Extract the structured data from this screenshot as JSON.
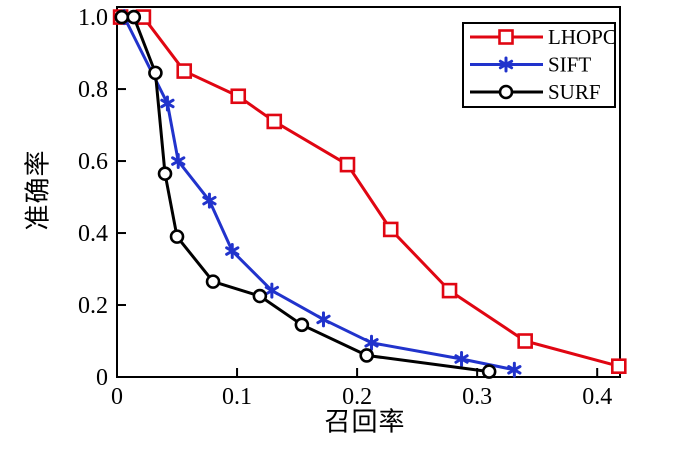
{
  "figure": {
    "background": "#ffffff",
    "frame_color": "#000000"
  },
  "chart_data": {
    "type": "line",
    "title": "",
    "xlabel": "召回率",
    "ylabel": "准确率",
    "xlim": [
      0,
      0.419
    ],
    "ylim": [
      0,
      1.028
    ],
    "grid": false,
    "xticks": {
      "values": [
        0,
        0.1,
        0.2,
        0.3,
        0.4
      ],
      "labels": [
        "0",
        "0.1",
        "0.2",
        "0.3",
        "0.4"
      ]
    },
    "yticks": {
      "values": [
        0,
        0.2,
        0.4,
        0.6,
        0.8,
        1.0
      ],
      "labels": [
        "0",
        "0.2",
        "0.4",
        "0.6",
        "0.8",
        "1.0"
      ]
    },
    "legend": {
      "position": "top-right",
      "border": true,
      "entries": [
        "LHOPC",
        "SIFT",
        "SURF"
      ]
    },
    "series": [
      {
        "name": "LHOPC",
        "color": "#e00612",
        "marker": "square",
        "x": [
          0.003,
          0.022,
          0.056,
          0.101,
          0.131,
          0.192,
          0.228,
          0.277,
          0.34,
          0.418
        ],
        "y": [
          1.0,
          1.0,
          0.85,
          0.78,
          0.71,
          0.59,
          0.41,
          0.24,
          0.1,
          0.03
        ]
      },
      {
        "name": "SIFT",
        "color": "#2133cc",
        "marker": "asterisk",
        "x": [
          0.006,
          0.042,
          0.051,
          0.077,
          0.096,
          0.129,
          0.172,
          0.212,
          0.287,
          0.331
        ],
        "y": [
          1.0,
          0.76,
          0.6,
          0.49,
          0.35,
          0.24,
          0.16,
          0.095,
          0.05,
          0.02
        ]
      },
      {
        "name": "SURF",
        "color": "#000000",
        "marker": "circle",
        "x": [
          0.004,
          0.014,
          0.032,
          0.04,
          0.05,
          0.08,
          0.119,
          0.154,
          0.208,
          0.31
        ],
        "y": [
          1.0,
          1.0,
          0.845,
          0.565,
          0.39,
          0.265,
          0.225,
          0.145,
          0.06,
          0.015
        ]
      }
    ]
  }
}
